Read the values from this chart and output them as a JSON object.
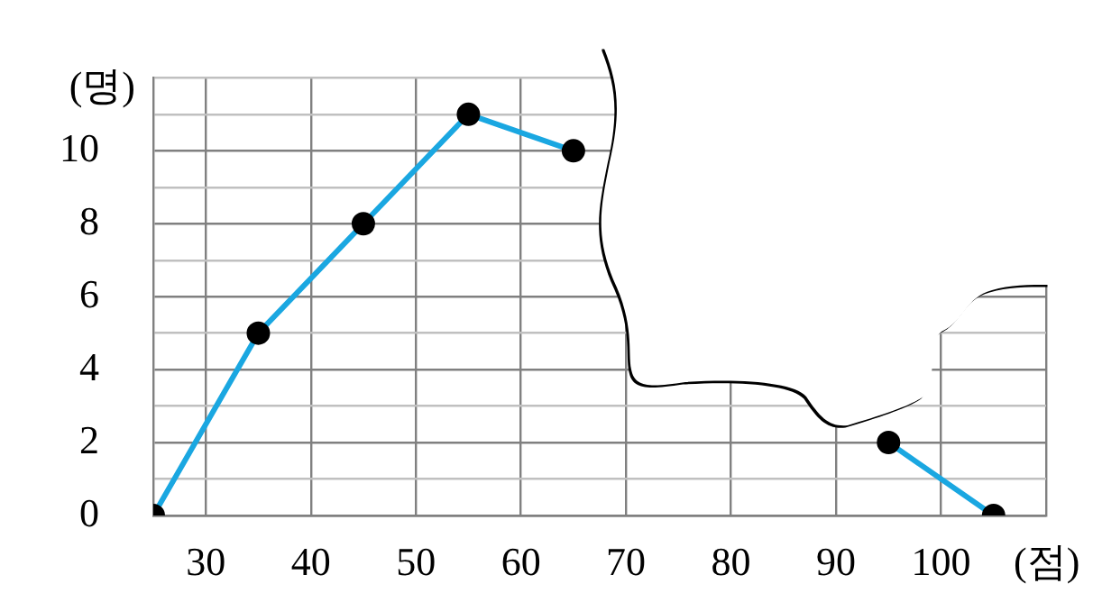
{
  "chart_data": {
    "type": "line",
    "xlabel": "(점)",
    "ylabel": "(명)",
    "x": [
      25,
      35,
      45,
      55,
      65,
      75,
      85,
      95,
      105
    ],
    "series": [
      {
        "color": "#1aa7e1",
        "values": [
          0,
          5,
          8,
          11,
          10,
          null,
          null,
          2,
          0
        ]
      }
    ],
    "xlim": [
      25,
      110
    ],
    "xticks": [
      30,
      40,
      50,
      60,
      70,
      80,
      90,
      100,
      {
        "value": 110,
        "label": null
      }
    ],
    "ylim": [
      0,
      12
    ],
    "yticks": [
      0,
      {
        "value": 1,
        "label": null
      },
      2,
      {
        "value": 3,
        "label": null
      },
      4,
      {
        "value": 5,
        "label": null
      },
      6,
      {
        "value": 7,
        "label": null
      },
      8,
      {
        "value": 9,
        "label": null
      },
      10,
      {
        "value": 11,
        "label": null
      },
      {
        "value": 12,
        "label": null
      }
    ],
    "grid": true,
    "marker": "circle",
    "line_style": "solid"
  }
}
